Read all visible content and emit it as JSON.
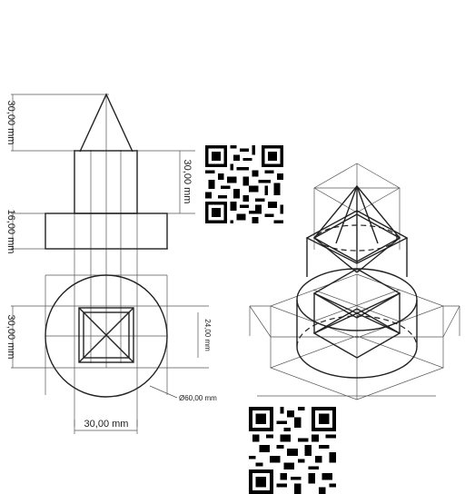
{
  "dimensions": {
    "tip_height": "30,00 mm",
    "shaft_height": "30,00 mm",
    "collar_height": "16,00 mm",
    "base_height": "30,00 mm",
    "square_side": "24,00 mm",
    "diameter": "Ø60,00 mm",
    "shaft_width": "30,00 mm"
  },
  "colors": {
    "line": "#222222",
    "construction": "#555555"
  },
  "icons": [
    "qr-code-icon",
    "qr-code-icon"
  ]
}
